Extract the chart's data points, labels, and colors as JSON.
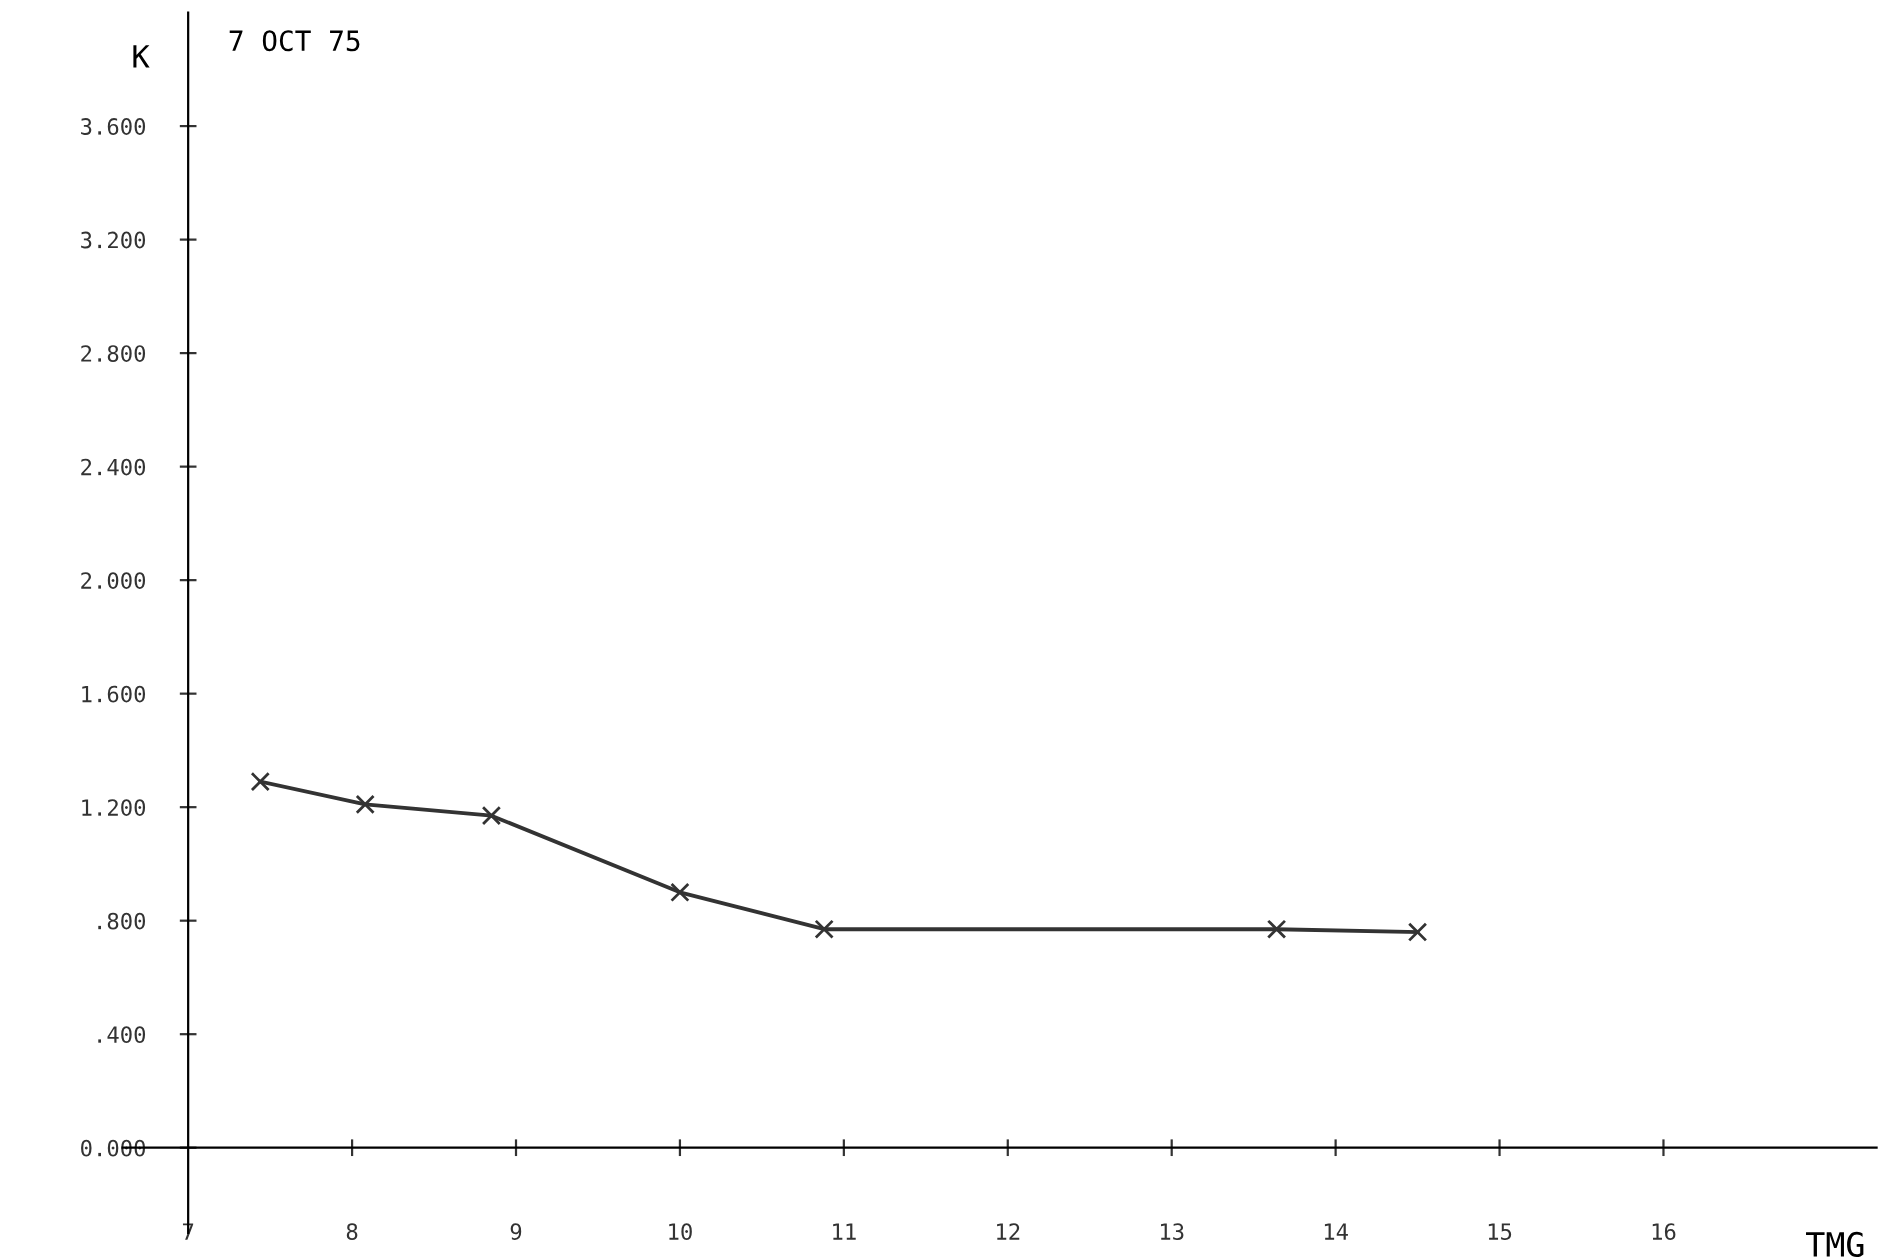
{
  "chart_data": {
    "type": "line",
    "title": "7 OCT 75",
    "xlabel": "TMG",
    "ylabel": "K",
    "x": [
      7.44,
      8.08,
      8.85,
      10.0,
      10.88,
      13.64,
      14.5
    ],
    "series": [
      {
        "color": "#333333",
        "values": [
          1.29,
          1.21,
          1.17,
          0.9,
          0.77,
          0.77,
          0.76
        ]
      }
    ],
    "xlim": [
      6.6,
      17.3
    ],
    "xticks": [
      7,
      8,
      9,
      10,
      11,
      12,
      13,
      14,
      15,
      16
    ],
    "ylim": [
      -0.3,
      4.0
    ],
    "yticks": [
      {
        "value": 0,
        "label": "0.000"
      },
      {
        "value": 0.4,
        "label": ".400"
      },
      {
        "value": 0.8,
        "label": ".800"
      },
      {
        "value": 1.2,
        "label": "1.200"
      },
      {
        "value": 1.6,
        "label": "1.600"
      },
      {
        "value": 2.0,
        "label": "2.000"
      },
      {
        "value": 2.4,
        "label": "2.400"
      },
      {
        "value": 2.8,
        "label": "2.800"
      },
      {
        "value": 3.2,
        "label": "3.200"
      },
      {
        "value": 3.6,
        "label": "3.600"
      }
    ],
    "marker": "cross",
    "line_style": "solid"
  }
}
